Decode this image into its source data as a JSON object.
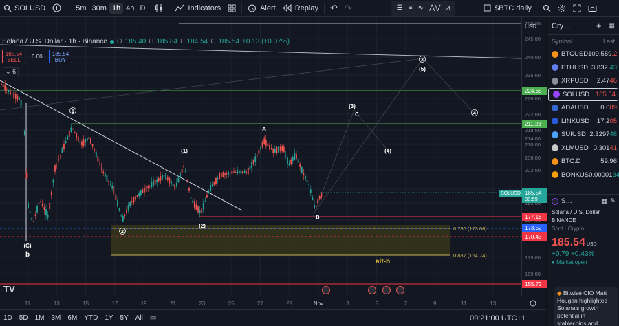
{
  "toolbar": {
    "symbol": "SOLUSD",
    "timeframes": [
      "5m",
      "30m",
      "1h",
      "4h",
      "D"
    ],
    "active_timeframe": "1h",
    "indicators_label": "Indicators",
    "alert_label": "Alert",
    "replay_label": "Replay",
    "layout_name": "$BTC daily"
  },
  "legend": {
    "title": "Solana / U.S. Dollar · 1h · Binance",
    "open_label": "O",
    "open": "185.40",
    "high_label": "H",
    "high": "185.84",
    "low_label": "L",
    "low": "184.54",
    "close_label": "C",
    "close": "185.54",
    "change": "+0.13 (+0.07%)"
  },
  "trade": {
    "sell_price": "185.54",
    "sell_label": "SELL",
    "spread": "0.00",
    "buy_price": "185.54",
    "buy_label": "BUY",
    "indicators_count": "6"
  },
  "price_axis": {
    "currency": "USD",
    "ticks": [
      "250.00",
      "245.00",
      "240.00",
      "235.00",
      "230.00",
      "226.00",
      "222.00",
      "218.00",
      "214.00",
      "210.00",
      "206.00",
      "202.00",
      "198.00",
      "193.00",
      "187.00",
      "181.00",
      "175.00",
      "169.00",
      "164.00",
      "159.00"
    ],
    "labels": {
      "l1": "224.65",
      "l2": "211.23",
      "current": "185.54",
      "countdown": "38:59",
      "l3": "177.16",
      "l4": "173.52",
      "l5": "170.43",
      "l6": "155.72"
    },
    "symbol_tag": "SOLUSD"
  },
  "date_axis": [
    "11",
    "13",
    "15",
    "17",
    "19",
    "21",
    "23",
    "25",
    "27",
    "29",
    "Nov",
    "3",
    "5",
    "7",
    "9",
    "11",
    "13"
  ],
  "annotations": {
    "w1": "1",
    "w1b": "(1)",
    "w2": "2",
    "w2b": "(2)",
    "w3": "3",
    "w3p": "(3)",
    "w4": "(4)",
    "w4c": "4",
    "w5": "(5)",
    "A": "A",
    "B": "B",
    "C": "C",
    "c_paren": "(C)",
    "b": "b",
    "fib1": "0.786 (173.06)",
    "fib2": "0.887 (164.74)",
    "altb": "alt-b"
  },
  "bottom": {
    "ranges": [
      "1D",
      "5D",
      "1M",
      "3M",
      "6M",
      "YTD",
      "1Y",
      "5Y",
      "All"
    ],
    "clock": "09:21:00 UTC+1"
  },
  "watchlist": {
    "title": "Cry…",
    "col_symbol": "Symbol",
    "col_last": "Last",
    "items": [
      {
        "sym": "BTCUSD",
        "last": "109,559.2",
        "color": "#f7931a",
        "cls": "red"
      },
      {
        "sym": "ETHUSD",
        "last": "3,832.43",
        "color": "#627eea",
        "cls": "grn"
      },
      {
        "sym": "XRPUSD",
        "last": "2.4746",
        "color": "#8a8f98",
        "cls": "red"
      },
      {
        "sym": "SOLUSD",
        "last": "185.54",
        "color": "#9945ff",
        "cls": "red"
      },
      {
        "sym": "ADAUSD",
        "last": "0.609",
        "color": "#3468d1",
        "cls": "red"
      },
      {
        "sym": "LINKUSD",
        "last": "17.205",
        "color": "#2a5ada",
        "cls": "red"
      },
      {
        "sym": "SUIUSD",
        "last": "2.329748",
        "color": "#4da2ff",
        "cls": "grn"
      },
      {
        "sym": "XLMUSD",
        "last": "0.30141",
        "color": "#c9c9c9",
        "cls": "red"
      },
      {
        "sym": "BTC.D",
        "last": "59.96",
        "color": "#f7931a",
        "cls": ""
      },
      {
        "sym": "BONKUS",
        "last": "0.0000134",
        "color": "#f59e0b",
        "cls": "grn"
      }
    ]
  },
  "detail": {
    "symbol": "S…",
    "name": "Solana / U.S. Dollar",
    "exchange": "BINANCE",
    "type": "Spot · Crypto",
    "price": "185.54",
    "currency": "USD",
    "change": "+0.79",
    "change_pct": "+0.43%",
    "status": "Market open",
    "news": "Bitwise CIO Matt Hougan highlighted Solana's growth potential in stablecoins and tokenization, suggesting"
  },
  "colors": {
    "bg": "#131722",
    "up": "#26a69a",
    "down": "#ef5350",
    "green_line": "#4caf50",
    "red_line": "#f23645"
  }
}
